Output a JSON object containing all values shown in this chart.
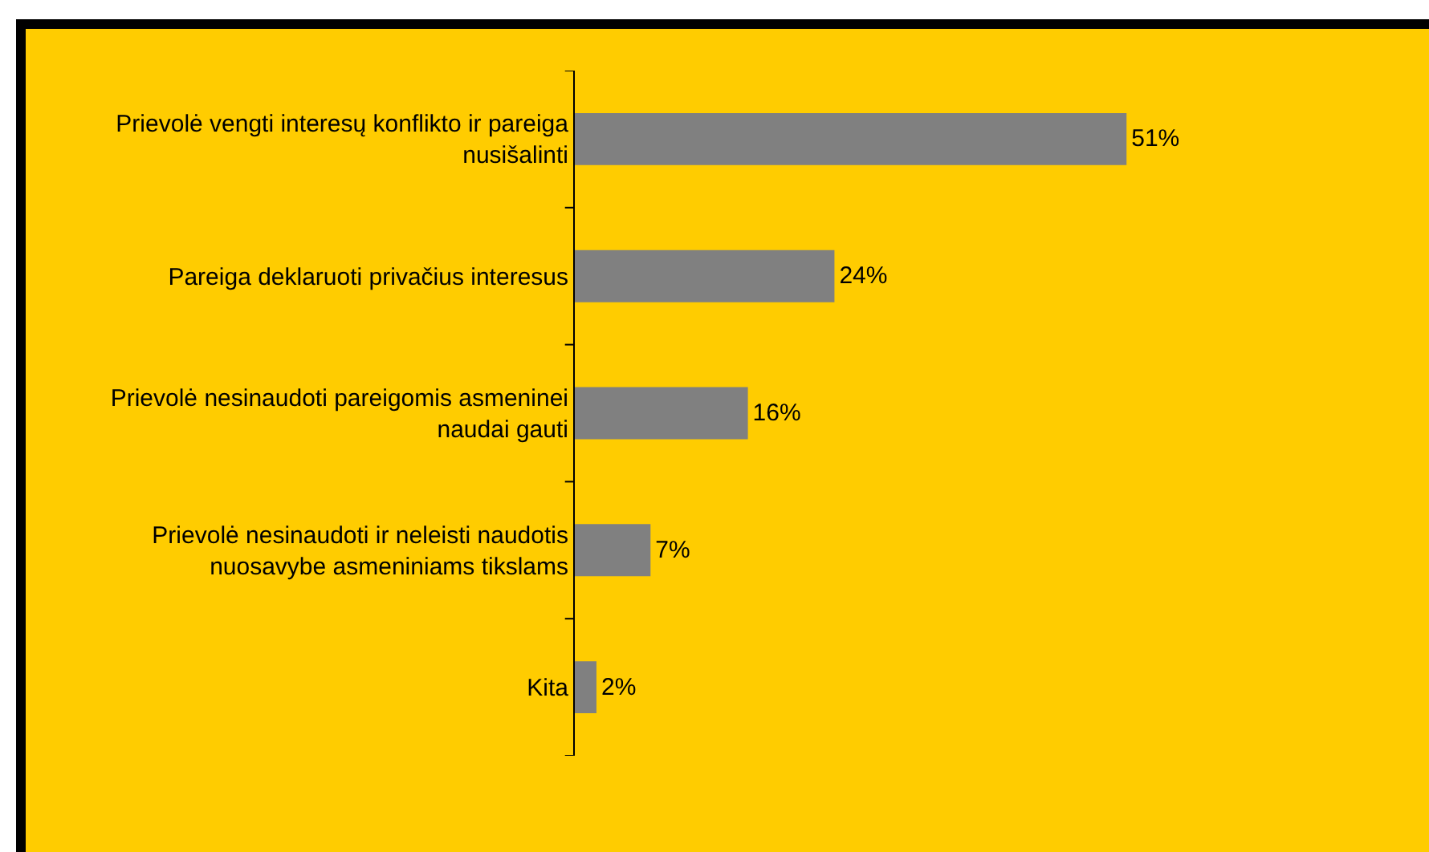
{
  "chart_data": {
    "type": "bar",
    "orientation": "horizontal",
    "categories": [
      "Prievolė vengti interesų konflikto ir pareiga nusišalinti",
      "Pareiga deklaruoti privačius interesus",
      "Prievolė nesinaudoti pareigomis asmeninei naudai gauti",
      "Prievolė nesinaudoti ir neleisti naudotis nuosavybe asmeniniams tikslams",
      "Kita"
    ],
    "values": [
      51,
      24,
      16,
      7,
      2
    ],
    "value_labels": [
      "51%",
      "24%",
      "16%",
      "7%",
      "2%"
    ],
    "color": "#808080",
    "tick_labels": "y"
  }
}
